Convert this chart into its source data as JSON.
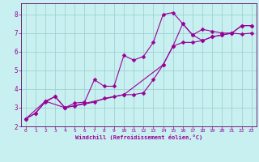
{
  "xlabel": "Windchill (Refroidissement éolien,°C)",
  "bg_color": "#c8f0f0",
  "line_color": "#990099",
  "grid_color": "#99cccc",
  "axis_color": "#660066",
  "xlim": [
    -0.5,
    23.5
  ],
  "ylim": [
    2.0,
    8.6
  ],
  "xticks": [
    0,
    1,
    2,
    3,
    4,
    5,
    6,
    7,
    8,
    9,
    10,
    11,
    12,
    13,
    14,
    15,
    16,
    17,
    18,
    19,
    20,
    21,
    22,
    23
  ],
  "yticks": [
    2,
    3,
    4,
    5,
    6,
    7,
    8
  ],
  "line1_x": [
    0,
    1,
    2,
    3,
    4,
    5,
    6,
    7,
    8,
    9,
    10,
    11,
    12,
    13,
    14,
    15,
    16,
    17,
    18,
    19,
    20,
    21,
    22,
    23
  ],
  "line1_y": [
    2.4,
    2.7,
    3.3,
    3.6,
    3.0,
    3.1,
    3.2,
    3.3,
    3.5,
    3.6,
    3.7,
    3.7,
    3.8,
    4.5,
    5.3,
    6.3,
    6.5,
    6.5,
    6.6,
    6.8,
    6.9,
    7.0,
    6.95,
    7.0
  ],
  "line2_x": [
    0,
    1,
    2,
    3,
    4,
    5,
    6,
    7,
    8,
    9,
    10,
    11,
    12,
    13,
    14,
    15,
    16,
    17,
    18,
    19,
    20,
    21,
    22,
    23
  ],
  "line2_y": [
    2.4,
    2.7,
    3.35,
    3.6,
    3.0,
    3.25,
    3.3,
    4.5,
    4.15,
    4.15,
    5.8,
    5.55,
    5.75,
    6.5,
    8.0,
    8.1,
    7.5,
    6.9,
    7.2,
    7.1,
    7.0,
    7.0,
    7.4,
    7.4
  ],
  "line3_x": [
    0,
    2,
    4,
    10,
    14,
    15,
    16,
    17,
    18,
    19,
    20,
    21,
    22,
    23
  ],
  "line3_y": [
    2.4,
    3.35,
    3.0,
    3.7,
    5.3,
    6.3,
    7.5,
    6.9,
    6.6,
    6.8,
    6.9,
    7.0,
    7.4,
    7.4
  ]
}
